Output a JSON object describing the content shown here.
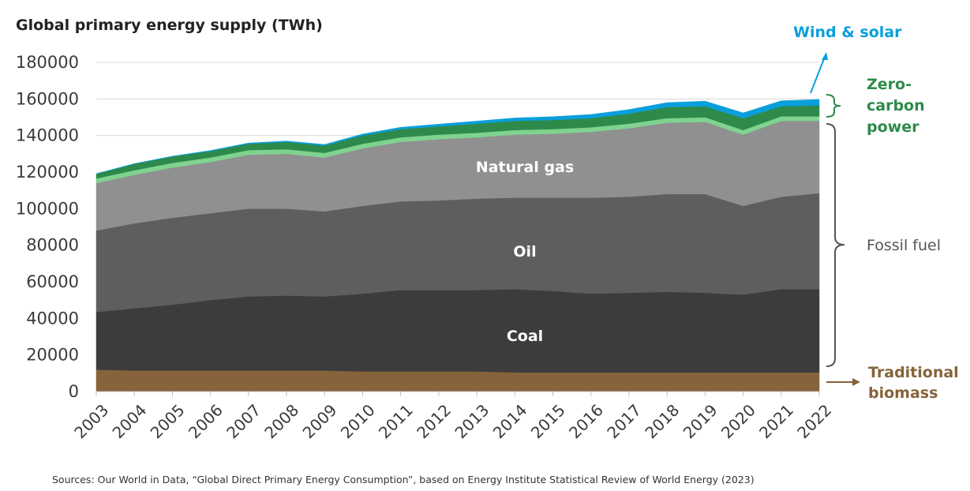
{
  "chart_data": {
    "type": "area",
    "stacked": true,
    "title": "Global primary energy supply (TWh)",
    "xlabel": "",
    "ylabel": "",
    "ylim": [
      0,
      180000
    ],
    "yticks": [
      0,
      20000,
      40000,
      60000,
      80000,
      100000,
      120000,
      140000,
      160000,
      180000
    ],
    "grid": true,
    "x": [
      "2003",
      "2004",
      "2005",
      "2006",
      "2007",
      "2008",
      "2009",
      "2010",
      "2011",
      "2012",
      "2013",
      "2014",
      "2015",
      "2016",
      "2017",
      "2018",
      "2019",
      "2020",
      "2021",
      "2022"
    ],
    "series": [
      {
        "key": "traditional_biomass",
        "color": "#86633a",
        "values": [
          12000,
          11500,
          11500,
          11500,
          11500,
          11500,
          11500,
          11000,
          11000,
          11000,
          11000,
          10500,
          10500,
          10500,
          10500,
          10500,
          10500,
          10500,
          10500,
          10500
        ]
      },
      {
        "key": "coal",
        "color": "#3c3c3c",
        "values": [
          31500,
          34000,
          36000,
          38500,
          40500,
          41000,
          40500,
          42500,
          44500,
          44500,
          44500,
          45500,
          44500,
          43000,
          43500,
          44000,
          43500,
          42500,
          45500,
          45500
        ]
      },
      {
        "key": "oil",
        "color": "#5e5e5e",
        "values": [
          44500,
          46500,
          47500,
          47500,
          48000,
          47500,
          46500,
          48000,
          48500,
          49000,
          50000,
          50000,
          51000,
          52500,
          52500,
          53500,
          54000,
          48500,
          50500,
          52500
        ]
      },
      {
        "key": "natural_gas",
        "color": "#909090",
        "values": [
          26000,
          26500,
          27500,
          28000,
          29500,
          30000,
          29500,
          31500,
          32500,
          33500,
          33500,
          34500,
          35000,
          36000,
          37500,
          39000,
          39500,
          39000,
          41500,
          39500
        ]
      },
      {
        "key": "renewables_other",
        "color": "#7fd38f",
        "values": [
          2500,
          2500,
          2500,
          2500,
          2500,
          2500,
          2500,
          2500,
          2500,
          2500,
          2500,
          2500,
          2500,
          2500,
          2500,
          2500,
          2500,
          2500,
          2500,
          2500
        ]
      },
      {
        "key": "zero_carbon_power",
        "color": "#2d8a4a",
        "values": [
          2500,
          3500,
          3500,
          3500,
          3500,
          4000,
          4000,
          4500,
          4500,
          4500,
          5000,
          5000,
          5000,
          5000,
          5500,
          6000,
          6000,
          6500,
          5500,
          6000
        ]
      },
      {
        "key": "wind_solar",
        "color": "#0a9fdc",
        "values": [
          100,
          150,
          200,
          300,
          400,
          500,
          600,
          800,
          1000,
          1200,
          1400,
          1600,
          1800,
          2000,
          2200,
          2500,
          2800,
          2900,
          3000,
          3200
        ]
      }
    ],
    "annotations": {
      "inner": [
        {
          "text": "Natural gas",
          "series": "natural_gas"
        },
        {
          "text": "Oil",
          "series": "oil"
        },
        {
          "text": "Coal",
          "series": "coal"
        }
      ],
      "wind_solar": {
        "text": "Wind & solar",
        "color": "#0a9fdc"
      },
      "zero_carbon": {
        "lines": [
          "Zero-",
          "carbon",
          "power"
        ],
        "color": "#2d8a4a"
      },
      "fossil": {
        "text": "Fossil fuel",
        "color": "#555555"
      },
      "biomass": {
        "lines": [
          "Traditional",
          "biomass"
        ],
        "color": "#86633a"
      }
    }
  },
  "source": "Sources: Our World in Data, “Global Direct Primary Energy Consumption”, based on Energy Institute Statistical Review of World Energy (2023)"
}
